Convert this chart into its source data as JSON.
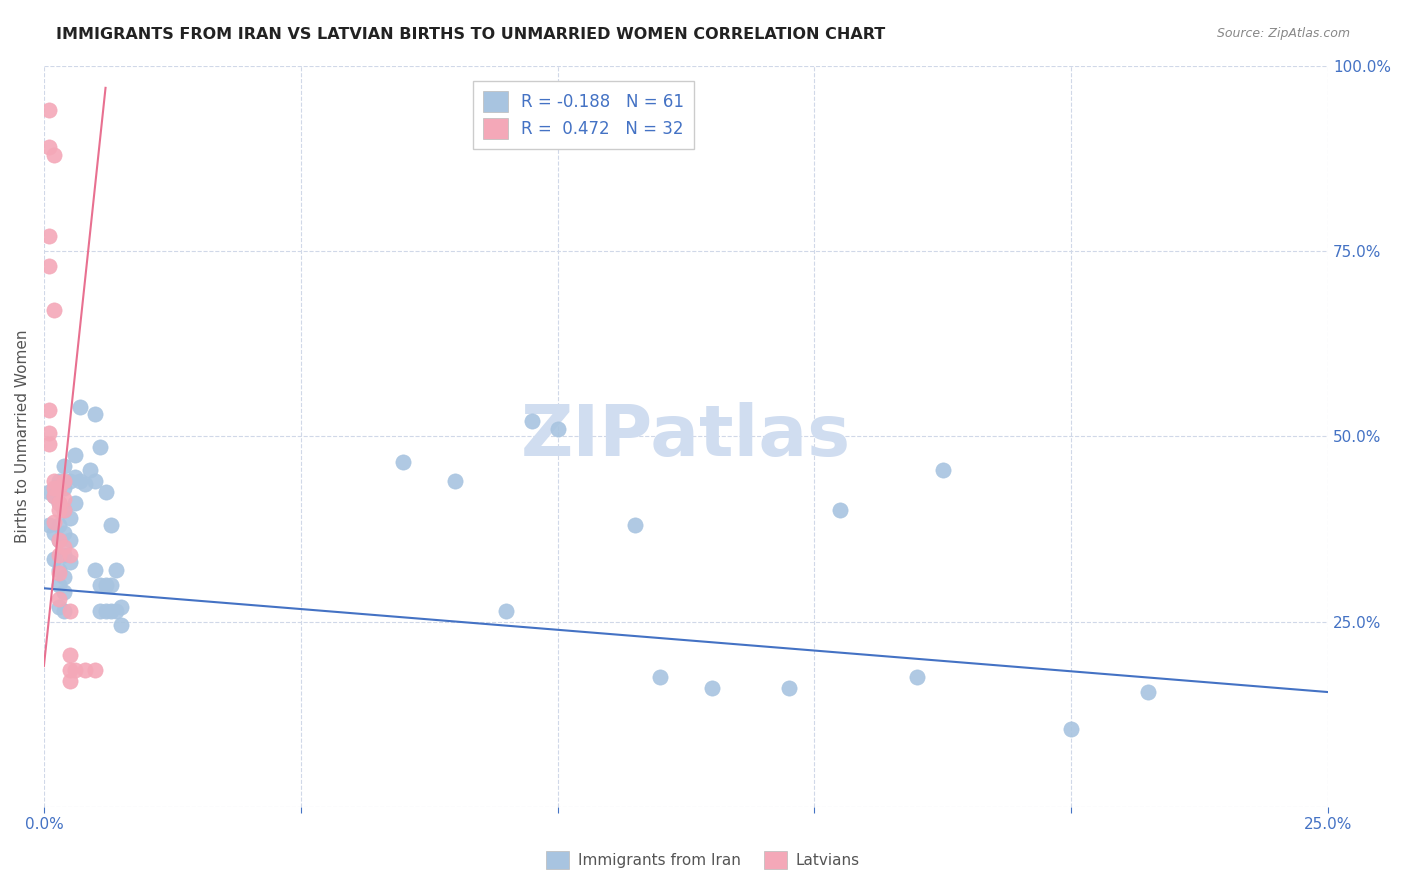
{
  "title": "IMMIGRANTS FROM IRAN VS LATVIAN BIRTHS TO UNMARRIED WOMEN CORRELATION CHART",
  "source": "Source: ZipAtlas.com",
  "ylabel": "Births to Unmarried Women",
  "xmin": 0.0,
  "xmax": 0.25,
  "ymin": 0.0,
  "ymax": 1.0,
  "xticks": [
    0.0,
    0.05,
    0.1,
    0.15,
    0.2,
    0.25
  ],
  "yticks_right": [
    0.0,
    0.25,
    0.5,
    0.75,
    1.0
  ],
  "ytick_labels_right": [
    "",
    "25.0%",
    "50.0%",
    "75.0%",
    "100.0%"
  ],
  "legend_r1": "R = -0.188   N = 61",
  "legend_r2": "R =  0.472   N = 32",
  "blue_color": "#a8c4e0",
  "pink_color": "#f4a8b8",
  "blue_line_color": "#4472c4",
  "pink_line_color": "#e87090",
  "title_color": "#222222",
  "source_color": "#888888",
  "grid_color": "#d0d8e8",
  "watermark_color": "#d0ddf0",
  "blue_scatter": [
    [
      0.001,
      0.425
    ],
    [
      0.001,
      0.38
    ],
    [
      0.002,
      0.42
    ],
    [
      0.002,
      0.37
    ],
    [
      0.002,
      0.335
    ],
    [
      0.003,
      0.44
    ],
    [
      0.003,
      0.41
    ],
    [
      0.003,
      0.38
    ],
    [
      0.003,
      0.36
    ],
    [
      0.003,
      0.32
    ],
    [
      0.003,
      0.3
    ],
    [
      0.003,
      0.27
    ],
    [
      0.004,
      0.46
    ],
    [
      0.004,
      0.43
    ],
    [
      0.004,
      0.4
    ],
    [
      0.004,
      0.37
    ],
    [
      0.004,
      0.34
    ],
    [
      0.004,
      0.31
    ],
    [
      0.004,
      0.29
    ],
    [
      0.004,
      0.265
    ],
    [
      0.005,
      0.44
    ],
    [
      0.005,
      0.39
    ],
    [
      0.005,
      0.36
    ],
    [
      0.005,
      0.33
    ],
    [
      0.006,
      0.475
    ],
    [
      0.006,
      0.445
    ],
    [
      0.006,
      0.41
    ],
    [
      0.007,
      0.54
    ],
    [
      0.007,
      0.44
    ],
    [
      0.008,
      0.435
    ],
    [
      0.009,
      0.455
    ],
    [
      0.01,
      0.53
    ],
    [
      0.01,
      0.44
    ],
    [
      0.01,
      0.32
    ],
    [
      0.011,
      0.485
    ],
    [
      0.011,
      0.3
    ],
    [
      0.011,
      0.265
    ],
    [
      0.012,
      0.425
    ],
    [
      0.012,
      0.3
    ],
    [
      0.012,
      0.265
    ],
    [
      0.013,
      0.38
    ],
    [
      0.013,
      0.3
    ],
    [
      0.013,
      0.265
    ],
    [
      0.014,
      0.32
    ],
    [
      0.014,
      0.265
    ],
    [
      0.015,
      0.27
    ],
    [
      0.015,
      0.245
    ],
    [
      0.07,
      0.465
    ],
    [
      0.08,
      0.44
    ],
    [
      0.09,
      0.265
    ],
    [
      0.095,
      0.52
    ],
    [
      0.1,
      0.51
    ],
    [
      0.115,
      0.38
    ],
    [
      0.12,
      0.175
    ],
    [
      0.13,
      0.16
    ],
    [
      0.145,
      0.16
    ],
    [
      0.155,
      0.4
    ],
    [
      0.17,
      0.175
    ],
    [
      0.175,
      0.455
    ],
    [
      0.2,
      0.105
    ],
    [
      0.215,
      0.155
    ]
  ],
  "pink_scatter": [
    [
      0.001,
      0.94
    ],
    [
      0.001,
      0.89
    ],
    [
      0.002,
      0.88
    ],
    [
      0.001,
      0.77
    ],
    [
      0.001,
      0.73
    ],
    [
      0.002,
      0.67
    ],
    [
      0.001,
      0.535
    ],
    [
      0.001,
      0.505
    ],
    [
      0.001,
      0.49
    ],
    [
      0.002,
      0.44
    ],
    [
      0.002,
      0.43
    ],
    [
      0.002,
      0.42
    ],
    [
      0.002,
      0.385
    ],
    [
      0.003,
      0.43
    ],
    [
      0.003,
      0.41
    ],
    [
      0.003,
      0.4
    ],
    [
      0.003,
      0.36
    ],
    [
      0.003,
      0.34
    ],
    [
      0.003,
      0.315
    ],
    [
      0.003,
      0.28
    ],
    [
      0.004,
      0.44
    ],
    [
      0.004,
      0.415
    ],
    [
      0.004,
      0.4
    ],
    [
      0.004,
      0.35
    ],
    [
      0.005,
      0.34
    ],
    [
      0.005,
      0.265
    ],
    [
      0.005,
      0.205
    ],
    [
      0.005,
      0.185
    ],
    [
      0.005,
      0.17
    ],
    [
      0.006,
      0.185
    ],
    [
      0.008,
      0.185
    ],
    [
      0.01,
      0.185
    ]
  ],
  "blue_trendline": [
    [
      0.0,
      0.295
    ],
    [
      0.25,
      0.155
    ]
  ],
  "pink_trendline": [
    [
      0.0,
      0.19
    ],
    [
      0.012,
      0.97
    ]
  ]
}
